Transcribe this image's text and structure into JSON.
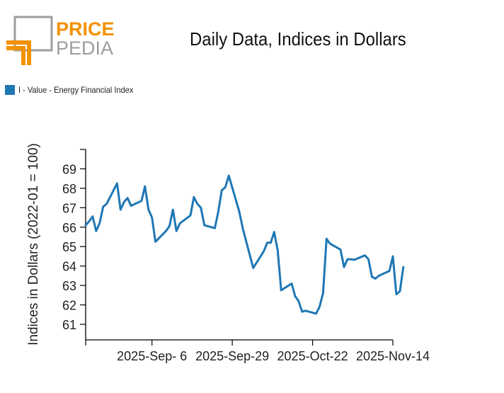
{
  "logo": {
    "word_top": "PRICE",
    "word_bottom": "PEDIA"
  },
  "colors": {
    "logo_orange": "#f39200",
    "logo_gray": "#9d9d9c",
    "series": "#1f77b4",
    "axis": "#000000"
  },
  "chart_data": {
    "type": "line",
    "title": "Daily Data, Indices in Dollars",
    "ylabel": "Indices in Dollars (2022-01 = 100)",
    "xlabel": "",
    "legend": "top-left",
    "grid": false,
    "x_range": [
      "2025-08-18",
      "2025-11-14"
    ],
    "ylim": [
      60.2,
      70
    ],
    "yticks": [
      61,
      62,
      63,
      64,
      65,
      66,
      67,
      68,
      69
    ],
    "xticks": [
      {
        "date": "2025-08-18",
        "label": ""
      },
      {
        "date": "2025-09-06",
        "label": "2025-Sep- 6"
      },
      {
        "date": "2025-09-29",
        "label": "2025-Sep-29"
      },
      {
        "date": "2025-10-22",
        "label": "2025-Oct-22"
      },
      {
        "date": "2025-11-14",
        "label": "2025-Nov-14"
      }
    ],
    "series": [
      {
        "name": "I - Value - Energy Financial Index",
        "points": [
          [
            "2025-08-18",
            66.1
          ],
          [
            "2025-08-19",
            66.3
          ],
          [
            "2025-08-20",
            66.55
          ],
          [
            "2025-08-21",
            65.8
          ],
          [
            "2025-08-22",
            66.2
          ],
          [
            "2025-08-23",
            67.05
          ],
          [
            "2025-08-24",
            67.2
          ],
          [
            "2025-08-27",
            68.25
          ],
          [
            "2025-08-28",
            66.9
          ],
          [
            "2025-08-29",
            67.3
          ],
          [
            "2025-08-30",
            67.5
          ],
          [
            "2025-08-31",
            67.1
          ],
          [
            "2025-09-03",
            67.35
          ],
          [
            "2025-09-04",
            68.1
          ],
          [
            "2025-09-05",
            66.9
          ],
          [
            "2025-09-06",
            66.5
          ],
          [
            "2025-09-07",
            65.25
          ],
          [
            "2025-09-10",
            65.8
          ],
          [
            "2025-09-11",
            66.05
          ],
          [
            "2025-09-12",
            66.9
          ],
          [
            "2025-09-13",
            65.8
          ],
          [
            "2025-09-14",
            66.2
          ],
          [
            "2025-09-17",
            66.6
          ],
          [
            "2025-09-18",
            67.55
          ],
          [
            "2025-09-19",
            67.2
          ],
          [
            "2025-09-20",
            67.0
          ],
          [
            "2025-09-21",
            66.1
          ],
          [
            "2025-09-24",
            65.95
          ],
          [
            "2025-09-25",
            66.8
          ],
          [
            "2025-09-26",
            67.9
          ],
          [
            "2025-09-27",
            68.05
          ],
          [
            "2025-09-28",
            68.65
          ],
          [
            "2025-10-01",
            66.8
          ],
          [
            "2025-10-02",
            65.95
          ],
          [
            "2025-10-05",
            63.9
          ],
          [
            "2025-10-08",
            64.75
          ],
          [
            "2025-10-09",
            65.2
          ],
          [
            "2025-10-10",
            65.2
          ],
          [
            "2025-10-11",
            65.75
          ],
          [
            "2025-10-12",
            64.8
          ],
          [
            "2025-10-13",
            62.75
          ],
          [
            "2025-10-16",
            63.1
          ],
          [
            "2025-10-17",
            62.45
          ],
          [
            "2025-10-18",
            62.2
          ],
          [
            "2025-10-19",
            61.65
          ],
          [
            "2025-10-20",
            61.7
          ],
          [
            "2025-10-23",
            61.55
          ],
          [
            "2025-10-24",
            61.9
          ],
          [
            "2025-10-25",
            62.6
          ],
          [
            "2025-10-26",
            65.4
          ],
          [
            "2025-10-27",
            65.15
          ],
          [
            "2025-10-30",
            64.85
          ],
          [
            "2025-10-31",
            63.95
          ],
          [
            "2025-11-01",
            64.35
          ],
          [
            "2025-11-02",
            64.35
          ],
          [
            "2025-11-03",
            64.32
          ],
          [
            "2025-11-06",
            64.55
          ],
          [
            "2025-11-07",
            64.35
          ],
          [
            "2025-11-08",
            63.45
          ],
          [
            "2025-11-09",
            63.35
          ],
          [
            "2025-11-10",
            63.5
          ],
          [
            "2025-11-13",
            63.75
          ],
          [
            "2025-11-14",
            64.5
          ],
          [
            "2025-11-15",
            62.55
          ],
          [
            "2025-11-16",
            62.7
          ],
          [
            "2025-11-17",
            63.95
          ]
        ]
      }
    ]
  }
}
